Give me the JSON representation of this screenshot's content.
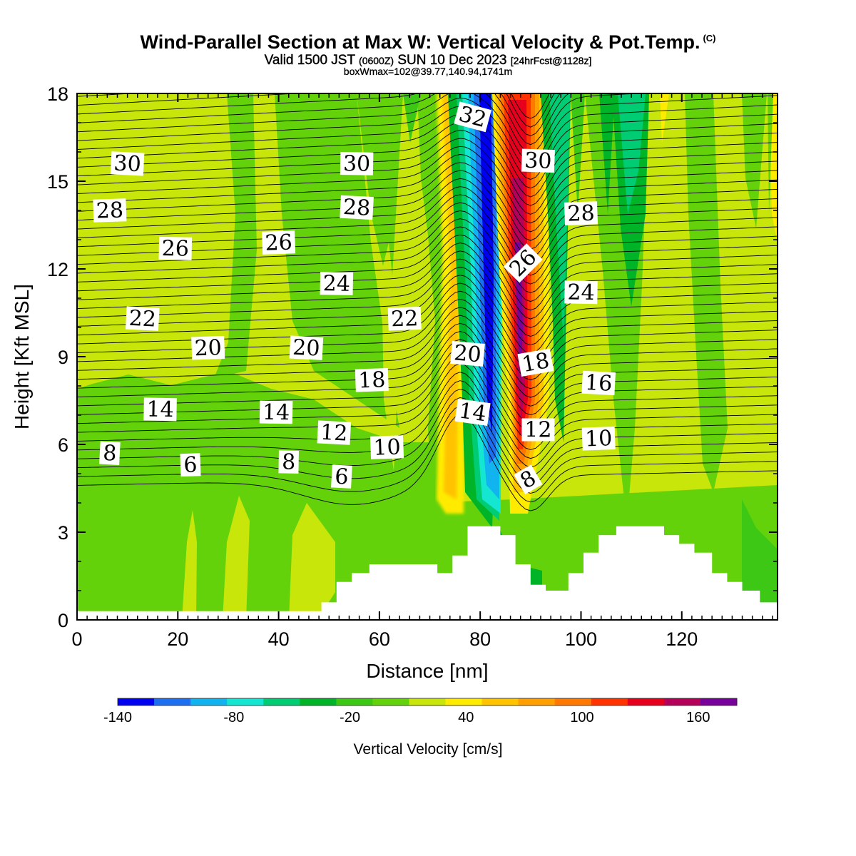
{
  "header": {
    "title": "Wind-Parallel Section at Max W: Vertical Velocity & Pot.Temp.",
    "copyright": "(C)",
    "valid_prefix": "Valid 1500 JST",
    "valid_utc": "(0600Z)",
    "valid_date": "SUN 10 Dec 2023",
    "forecast_info": "[24hrFcst@1128z]",
    "boxwmax": "boxWmax=102@39.77,140.94,1741m"
  },
  "chart_data": {
    "type": "heatmap",
    "title": "Wind-Parallel Section at Max W: Vertical Velocity & Pot.Temp.",
    "xlabel": "Distance [nm]",
    "ylabel": "Height [Kft MSL]",
    "xlim": [
      0,
      139
    ],
    "ylim": [
      0,
      18
    ],
    "x_ticks": [
      0,
      20,
      40,
      60,
      80,
      100,
      120
    ],
    "y_ticks": [
      0,
      3,
      6,
      9,
      12,
      15,
      18
    ],
    "colorbar": {
      "title": "Vertical Velocity [cm/s]",
      "range": [
        -140,
        180
      ],
      "step": 20,
      "tick_labels": [
        "-140",
        "-80",
        "-20",
        "40",
        "100",
        "160"
      ],
      "tick_values": [
        -140,
        -80,
        -20,
        40,
        100,
        160
      ],
      "colors": [
        "#0000f0",
        "#1e6ef0",
        "#12b4f0",
        "#14e6d2",
        "#00cd73",
        "#00b428",
        "#3cc814",
        "#64d20a",
        "#c8e60a",
        "#ffeb00",
        "#ffc300",
        "#ffa000",
        "#ff7800",
        "#ff3200",
        "#e6001e",
        "#b4005a",
        "#78009b"
      ]
    },
    "contour_field": "Potential Temperature",
    "contour_labels": [
      {
        "text": "30",
        "x": 10,
        "y": 15.6
      },
      {
        "text": "28",
        "x": 6.5,
        "y": 14.0
      },
      {
        "text": "26",
        "x": 19.5,
        "y": 12.7
      },
      {
        "text": "22",
        "x": 13,
        "y": 10.3
      },
      {
        "text": "20",
        "x": 26,
        "y": 9.3
      },
      {
        "text": "14",
        "x": 16.5,
        "y": 7.2
      },
      {
        "text": "8",
        "x": 6.5,
        "y": 5.7
      },
      {
        "text": "6",
        "x": 22.5,
        "y": 5.3
      },
      {
        "text": "30",
        "x": 55.5,
        "y": 15.6
      },
      {
        "text": "28",
        "x": 55.5,
        "y": 14.1
      },
      {
        "text": "26",
        "x": 40,
        "y": 12.9
      },
      {
        "text": "24",
        "x": 51.5,
        "y": 11.5
      },
      {
        "text": "20",
        "x": 45.5,
        "y": 9.3
      },
      {
        "text": "18",
        "x": 58.5,
        "y": 8.2
      },
      {
        "text": "14",
        "x": 39.5,
        "y": 7.1
      },
      {
        "text": "12",
        "x": 51,
        "y": 6.4
      },
      {
        "text": "10",
        "x": 61.5,
        "y": 5.9
      },
      {
        "text": "8",
        "x": 42,
        "y": 5.4
      },
      {
        "text": "6",
        "x": 52.5,
        "y": 4.9
      },
      {
        "text": "22",
        "x": 65,
        "y": 10.3
      },
      {
        "text": "32",
        "x": 78.5,
        "y": 17.2
      },
      {
        "text": "30",
        "x": 91.5,
        "y": 15.7
      },
      {
        "text": "26",
        "x": 88.5,
        "y": 12.2
      },
      {
        "text": "20",
        "x": 77.5,
        "y": 9.1
      },
      {
        "text": "18",
        "x": 91,
        "y": 8.8
      },
      {
        "text": "14",
        "x": 78.5,
        "y": 7.1
      },
      {
        "text": "12",
        "x": 91.5,
        "y": 6.5
      },
      {
        "text": "8",
        "x": 89.5,
        "y": 4.8
      },
      {
        "text": "28",
        "x": 100,
        "y": 13.9
      },
      {
        "text": "24",
        "x": 100,
        "y": 11.2
      },
      {
        "text": "16",
        "x": 103.5,
        "y": 8.1
      },
      {
        "text": "10",
        "x": 103.5,
        "y": 6.2
      }
    ],
    "terrain": [
      [
        0,
        0.3
      ],
      [
        48.5,
        0.3
      ],
      [
        48.5,
        0.6
      ],
      [
        51.5,
        0.6
      ],
      [
        51.5,
        1.3
      ],
      [
        54.5,
        1.3
      ],
      [
        54.5,
        1.6
      ],
      [
        58,
        1.6
      ],
      [
        58,
        1.9
      ],
      [
        71.5,
        1.9
      ],
      [
        71.5,
        1.6
      ],
      [
        74.5,
        1.6
      ],
      [
        74.5,
        2.2
      ],
      [
        77.5,
        2.2
      ],
      [
        77.5,
        3.2
      ],
      [
        84,
        3.2
      ],
      [
        84,
        2.9
      ],
      [
        87,
        2.9
      ],
      [
        87,
        1.9
      ],
      [
        90,
        1.9
      ],
      [
        90,
        1.2
      ],
      [
        93,
        1.2
      ],
      [
        93,
        1.0
      ],
      [
        97.5,
        1.0
      ],
      [
        97.5,
        1.6
      ],
      [
        100.5,
        1.6
      ],
      [
        100.5,
        2.3
      ],
      [
        103.5,
        2.3
      ],
      [
        103.5,
        2.9
      ],
      [
        107,
        2.9
      ],
      [
        107,
        3.2
      ],
      [
        116.5,
        3.2
      ],
      [
        116.5,
        2.9
      ],
      [
        119.5,
        2.9
      ],
      [
        119.5,
        2.6
      ],
      [
        122.5,
        2.6
      ],
      [
        122.5,
        2.3
      ],
      [
        126,
        2.3
      ],
      [
        126,
        1.6
      ],
      [
        129,
        1.6
      ],
      [
        129,
        1.3
      ],
      [
        132,
        1.3
      ],
      [
        132,
        1.0
      ],
      [
        135.5,
        1.0
      ],
      [
        135.5,
        0.6
      ],
      [
        139,
        0.6
      ]
    ]
  }
}
